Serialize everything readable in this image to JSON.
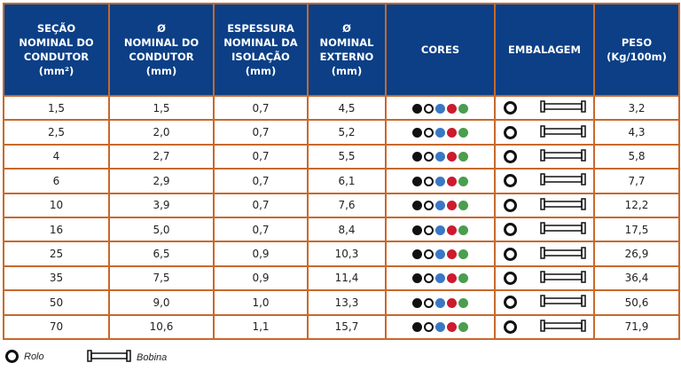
{
  "headers": [
    "SEÇÃO NOMINAL DO CONDUTOR (mm²)",
    "Ø NOMINAL DO CONDUTOR (mm)",
    "ESPESSURA NOMINAL DA ISOLAÇÃO (mm)",
    "Ø NOMINAL EXTERNO (mm)",
    "CORES",
    "EMBALAGEM",
    "PESO (Kg/100m)"
  ],
  "colors": [
    "#111111",
    "#ffffff",
    "#3a78c4",
    "#cc1a2e",
    "#4a9e4c"
  ],
  "rows": [
    [
      "1,5",
      "1,5",
      "0,7",
      "4,5",
      "3,2"
    ],
    [
      "2,5",
      "2,0",
      "0,7",
      "5,2",
      "4,3"
    ],
    [
      "4",
      "2,7",
      "0,7",
      "5,5",
      "5,8"
    ],
    [
      "6",
      "2,9",
      "0,7",
      "6,1",
      "7,7"
    ],
    [
      "10",
      "3,9",
      "0,7",
      "7,6",
      "12,2"
    ],
    [
      "16",
      "5,0",
      "0,7",
      "8,4",
      "17,5"
    ],
    [
      "25",
      "6,5",
      "0,9",
      "10,3",
      "26,9"
    ],
    [
      "35",
      "7,5",
      "0,9",
      "11,4",
      "36,4"
    ],
    [
      "50",
      "9,0",
      "1,0",
      "13,3",
      "50,6"
    ],
    [
      "70",
      "10,6",
      "1,1",
      "15,7",
      "71,9"
    ]
  ],
  "legend": {
    "rolo": "Rolo",
    "bobina": "Bobina"
  }
}
